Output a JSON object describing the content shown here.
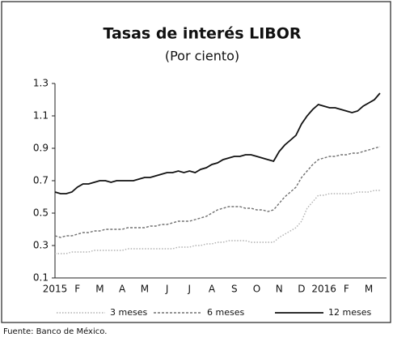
{
  "chart_data": {
    "type": "line",
    "title": "Tasas de interés LIBOR",
    "subtitle": "(Por ciento)",
    "categories": [
      "2015",
      null,
      null,
      null,
      "F",
      null,
      null,
      null,
      "M",
      null,
      null,
      null,
      "A",
      null,
      null,
      null,
      "M",
      null,
      null,
      null,
      "J",
      null,
      null,
      null,
      "J",
      null,
      null,
      null,
      "A",
      null,
      null,
      null,
      "S",
      null,
      null,
      null,
      "O",
      null,
      null,
      null,
      "N",
      null,
      null,
      null,
      "D",
      null,
      null,
      null,
      "2016",
      null,
      null,
      null,
      "F",
      null,
      null,
      null,
      "M",
      null,
      null
    ],
    "series": [
      {
        "name": "3 meses",
        "color": "#b0b0b0",
        "values": [
          0.25,
          0.25,
          0.25,
          0.26,
          0.26,
          0.26,
          0.26,
          0.27,
          0.27,
          0.27,
          0.27,
          0.27,
          0.27,
          0.28,
          0.28,
          0.28,
          0.28,
          0.28,
          0.28,
          0.28,
          0.28,
          0.28,
          0.29,
          0.29,
          0.29,
          0.3,
          0.3,
          0.31,
          0.31,
          0.32,
          0.32,
          0.33,
          0.33,
          0.33,
          0.33,
          0.32,
          0.32,
          0.32,
          0.32,
          0.32,
          0.35,
          0.37,
          0.39,
          0.41,
          0.45,
          0.53,
          0.57,
          0.61,
          0.61,
          0.62,
          0.62,
          0.62,
          0.62,
          0.62,
          0.63,
          0.63,
          0.63,
          0.64,
          0.64
        ]
      },
      {
        "name": "6 meses",
        "color": "#707070",
        "values": [
          0.36,
          0.35,
          0.36,
          0.36,
          0.37,
          0.38,
          0.38,
          0.39,
          0.39,
          0.4,
          0.4,
          0.4,
          0.4,
          0.41,
          0.41,
          0.41,
          0.41,
          0.42,
          0.42,
          0.43,
          0.43,
          0.44,
          0.45,
          0.45,
          0.45,
          0.46,
          0.47,
          0.48,
          0.5,
          0.52,
          0.53,
          0.54,
          0.54,
          0.54,
          0.53,
          0.53,
          0.52,
          0.52,
          0.51,
          0.52,
          0.56,
          0.6,
          0.63,
          0.66,
          0.72,
          0.76,
          0.8,
          0.83,
          0.84,
          0.85,
          0.85,
          0.86,
          0.86,
          0.87,
          0.87,
          0.88,
          0.89,
          0.9,
          0.91
        ]
      },
      {
        "name": "12 meses",
        "color": "#111111",
        "values": [
          0.63,
          0.62,
          0.62,
          0.63,
          0.66,
          0.68,
          0.68,
          0.69,
          0.7,
          0.7,
          0.69,
          0.7,
          0.7,
          0.7,
          0.7,
          0.71,
          0.72,
          0.72,
          0.73,
          0.74,
          0.75,
          0.75,
          0.76,
          0.75,
          0.76,
          0.75,
          0.77,
          0.78,
          0.8,
          0.81,
          0.83,
          0.84,
          0.85,
          0.85,
          0.86,
          0.86,
          0.85,
          0.84,
          0.83,
          0.82,
          0.88,
          0.92,
          0.95,
          0.98,
          1.05,
          1.1,
          1.14,
          1.17,
          1.16,
          1.15,
          1.15,
          1.14,
          1.13,
          1.12,
          1.13,
          1.16,
          1.18,
          1.2,
          1.24
        ]
      }
    ],
    "ylim": [
      0.1,
      1.3
    ],
    "yticks": [
      0.1,
      0.3,
      0.5,
      0.7,
      0.9,
      1.1,
      1.3
    ],
    "source": "Fuente: Banco de México."
  }
}
